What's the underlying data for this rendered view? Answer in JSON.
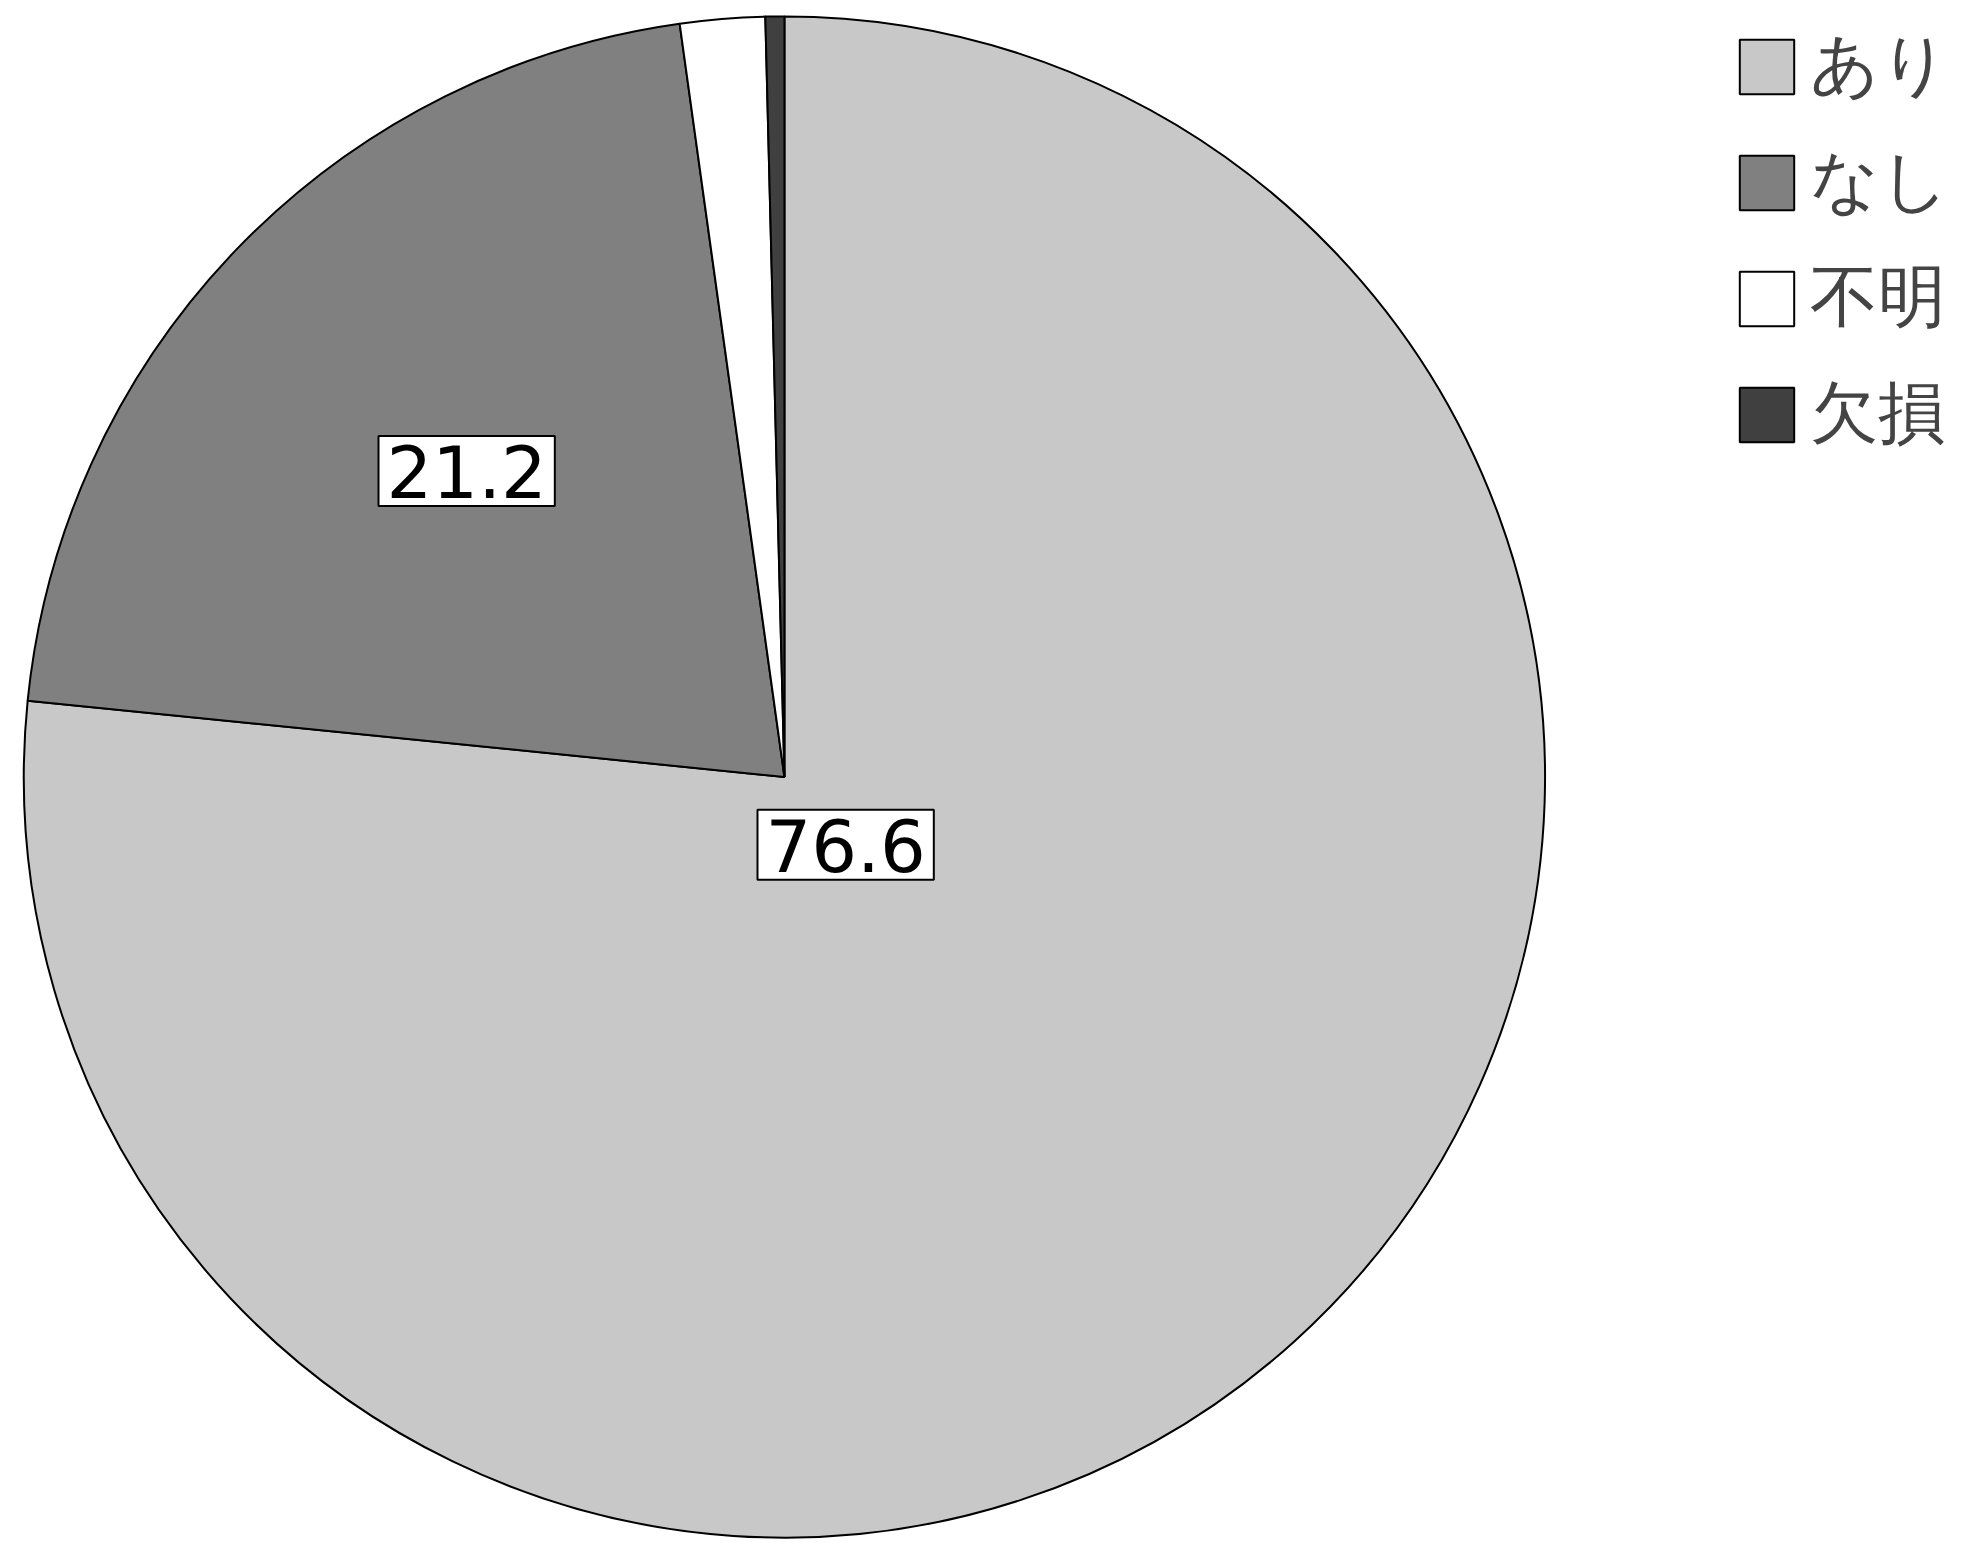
{
  "chart_data": {
    "type": "pie",
    "categories": [
      "あり",
      "なし",
      "不明",
      "欠損"
    ],
    "values": [
      76.6,
      21.2,
      1.8,
      0.4
    ],
    "colors": [
      "#c8c8c8",
      "#808080",
      "#ffffff",
      "#404040"
    ],
    "value_labels": [
      "76.6",
      "21.2",
      null,
      null
    ],
    "legend": "top right"
  }
}
